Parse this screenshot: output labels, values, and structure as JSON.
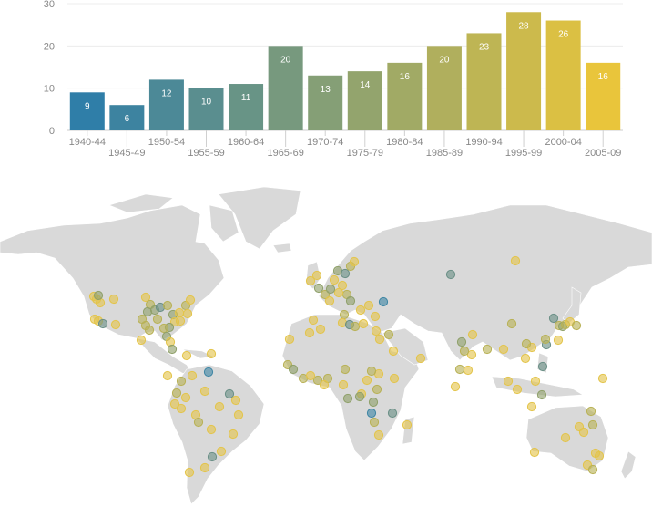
{
  "chart_data": {
    "type": "bar",
    "categories": [
      "1940-44",
      "1945-49",
      "1950-54",
      "1955-59",
      "1960-64",
      "1965-69",
      "1970-74",
      "1975-79",
      "1980-84",
      "1985-89",
      "1990-94",
      "1995-99",
      "2000-04",
      "2005-09"
    ],
    "values": [
      9,
      6,
      12,
      10,
      11,
      20,
      13,
      14,
      16,
      20,
      23,
      28,
      26,
      16
    ],
    "y_ticks": [
      0,
      10,
      20,
      30
    ],
    "ylim": [
      0,
      30
    ],
    "grid": true,
    "color_scale": [
      "#2f7ea8",
      "#e9c53b"
    ]
  },
  "map": {
    "type": "point map (world)",
    "point_colors": [
      "#3f86a4",
      "#6a8f86",
      "#8fa06a",
      "#b8b155",
      "#e3c44a"
    ]
  }
}
